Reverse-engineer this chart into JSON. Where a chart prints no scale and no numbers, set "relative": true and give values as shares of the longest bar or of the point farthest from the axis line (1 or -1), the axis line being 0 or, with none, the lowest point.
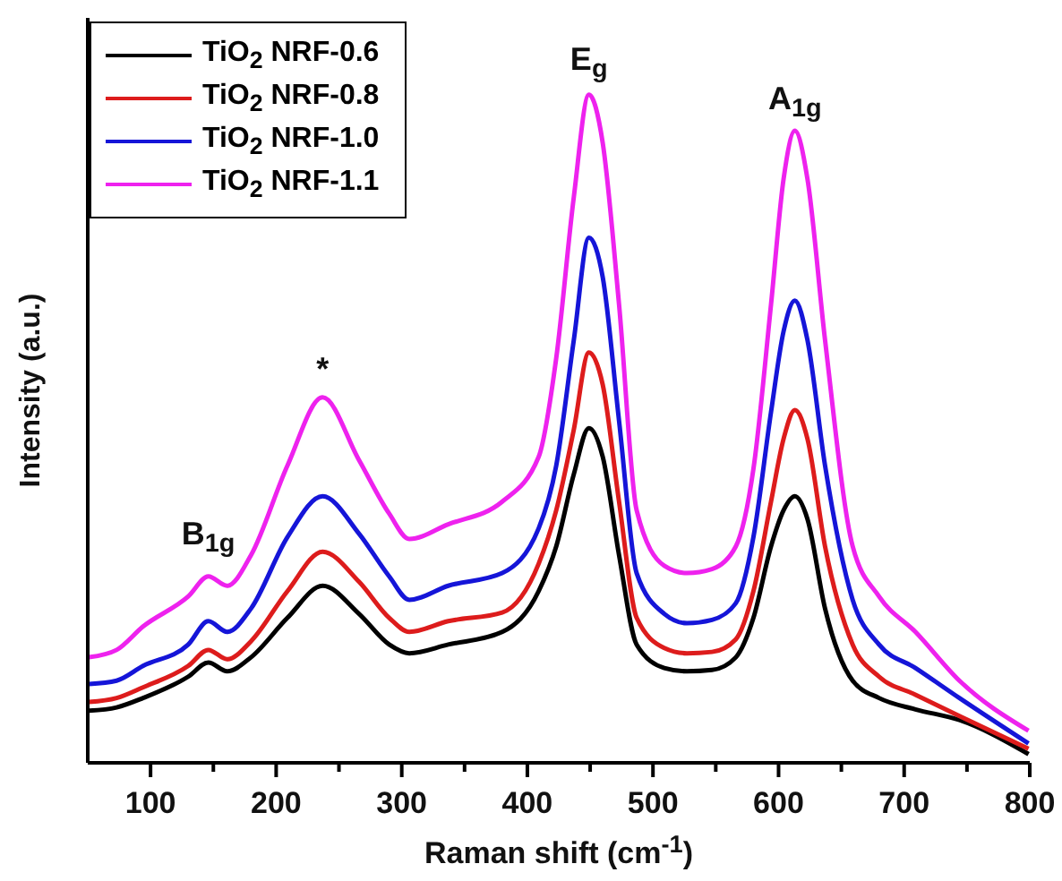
{
  "chart_data": {
    "type": "line",
    "relative": true,
    "xlabel": "Raman shift (cm$^{-1}$)",
    "ylabel": "Intensity (a.u.)",
    "x": [
      51,
      73,
      94,
      130,
      146,
      161,
      180,
      209,
      237,
      266,
      290,
      306,
      337,
      380,
      409,
      423,
      437,
      449,
      460,
      473,
      487,
      509,
      527,
      547,
      566,
      580,
      594,
      604,
      613,
      623,
      637,
      659,
      680,
      709,
      744,
      799
    ],
    "xlim": [
      50,
      800
    ],
    "xticks": [
      100,
      {
        "value": 150,
        "label": null
      },
      200,
      {
        "value": 250,
        "label": null
      },
      300,
      {
        "value": 350,
        "label": null
      },
      400,
      {
        "value": 450,
        "label": null
      },
      500,
      {
        "value": 550,
        "label": null
      },
      600,
      {
        "value": 650,
        "label": null
      },
      700,
      {
        "value": 750,
        "label": null
      },
      800
    ],
    "series": [
      {
        "name": "TiO$_{2}$ NRF-0.6",
        "color": "#000000",
        "values": [
          0.078,
          0.083,
          0.097,
          0.129,
          0.15,
          0.137,
          0.158,
          0.217,
          0.265,
          0.223,
          0.177,
          0.164,
          0.177,
          0.196,
          0.257,
          0.324,
          0.432,
          0.501,
          0.458,
          0.311,
          0.177,
          0.142,
          0.137,
          0.139,
          0.158,
          0.217,
          0.324,
          0.378,
          0.399,
          0.365,
          0.231,
          0.123,
          0.097,
          0.08,
          0.064,
          0.013
        ]
      },
      {
        "name": "TiO$_{2}$ NRF-0.8",
        "color": "#dd1c1c",
        "values": [
          0.091,
          0.097,
          0.113,
          0.145,
          0.169,
          0.155,
          0.182,
          0.257,
          0.316,
          0.271,
          0.217,
          0.196,
          0.212,
          0.225,
          0.298,
          0.378,
          0.499,
          0.614,
          0.566,
          0.391,
          0.217,
          0.172,
          0.164,
          0.166,
          0.185,
          0.257,
          0.391,
          0.485,
          0.528,
          0.485,
          0.324,
          0.177,
          0.129,
          0.102,
          0.07,
          0.021
        ]
      },
      {
        "name": "TiO$_{2}$ NRF-1.0",
        "color": "#1515d8",
        "values": [
          0.118,
          0.123,
          0.145,
          0.177,
          0.212,
          0.196,
          0.231,
          0.338,
          0.399,
          0.343,
          0.279,
          0.244,
          0.265,
          0.284,
          0.351,
          0.445,
          0.633,
          0.786,
          0.727,
          0.512,
          0.284,
          0.223,
          0.209,
          0.214,
          0.239,
          0.338,
          0.525,
          0.646,
          0.692,
          0.633,
          0.445,
          0.244,
          0.177,
          0.142,
          0.097,
          0.029
        ]
      },
      {
        "name": "TiO$_{2}$ NRF-1.1",
        "color": "#ee22ee",
        "values": [
          0.158,
          0.169,
          0.204,
          0.249,
          0.279,
          0.265,
          0.311,
          0.445,
          0.547,
          0.453,
          0.373,
          0.335,
          0.357,
          0.391,
          0.458,
          0.606,
          0.847,
          1.0,
          0.928,
          0.686,
          0.378,
          0.295,
          0.284,
          0.29,
          0.324,
          0.44,
          0.686,
          0.874,
          0.946,
          0.874,
          0.633,
          0.324,
          0.249,
          0.196,
          0.123,
          0.048
        ]
      }
    ],
    "annotations": [
      {
        "text": "B$_{1g}$",
        "x": 146,
        "y": 0.279
      },
      {
        "text": "*",
        "x": 237,
        "y": 0.547
      },
      {
        "text": "E$_{g}$",
        "x": 449,
        "y": 1.0
      },
      {
        "text": "A$_{1g}$",
        "x": 613,
        "y": 0.946
      }
    ],
    "legend": "top left",
    "marker": "none",
    "line_style": "solid"
  }
}
